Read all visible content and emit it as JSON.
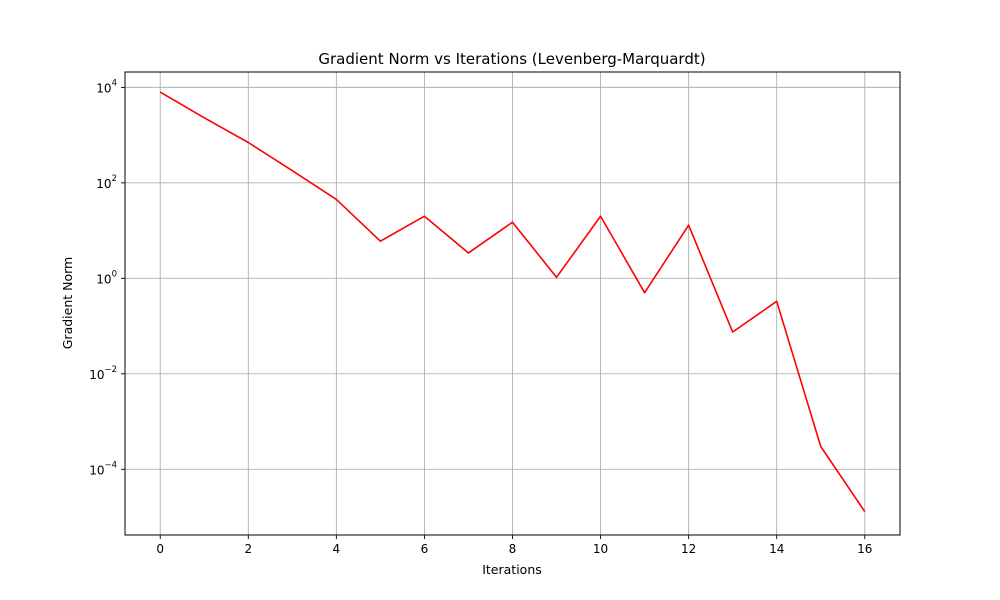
{
  "chart_data": {
    "type": "line",
    "title": "Gradient Norm vs Iterations (Levenberg-Marquardt)",
    "xlabel": "Iterations",
    "ylabel": "Gradient Norm",
    "y_scale": "log",
    "x_ticks": [
      0,
      2,
      4,
      6,
      8,
      10,
      12,
      14,
      16
    ],
    "y_ticks": [
      {
        "value": 0.0001,
        "base": "10",
        "exp": "−4"
      },
      {
        "value": 0.01,
        "base": "10",
        "exp": "−2"
      },
      {
        "value": 1,
        "base": "10",
        "exp": "0"
      },
      {
        "value": 100,
        "base": "10",
        "exp": "2"
      },
      {
        "value": 10000,
        "base": "10",
        "exp": "4"
      }
    ],
    "xlim": [
      -0.8,
      16.8
    ],
    "ylim": [
      4.2e-06,
      21000
    ],
    "grid": true,
    "series": [
      {
        "color": "#ff0000",
        "x": [
          0,
          1,
          2,
          3,
          4,
          5,
          6,
          7,
          8,
          9,
          10,
          11,
          12,
          13,
          14,
          15,
          16
        ],
        "y": [
          8000,
          2300,
          700,
          180,
          45,
          6,
          20,
          3.4,
          15,
          1.05,
          20,
          0.5,
          13,
          0.075,
          0.33,
          0.0003,
          1.3e-05
        ]
      }
    ]
  }
}
